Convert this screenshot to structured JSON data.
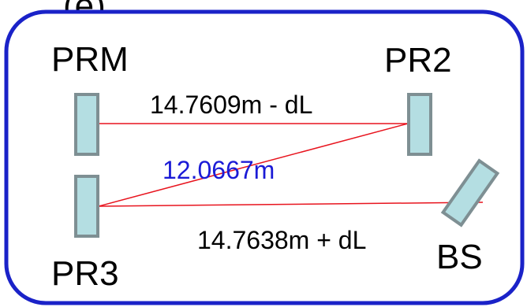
{
  "header_fragment": "(e)",
  "components": {
    "prm": {
      "label": "PRM"
    },
    "pr2": {
      "label": "PR2"
    },
    "pr3": {
      "label": "PR3"
    },
    "bs": {
      "label": "BS"
    }
  },
  "distances": {
    "prm_pr2": "14.7609m - dL",
    "pr2_pr3": "12.0667m",
    "pr3_bs": "14.7638m + dL"
  },
  "colors": {
    "frame": "#1a22c8",
    "mirror_fill": "#b4dee2",
    "mirror_stroke": "#7e8f93",
    "beam": "#e8141e",
    "label": "#000000",
    "highlight_label": "#1b1bd6"
  }
}
